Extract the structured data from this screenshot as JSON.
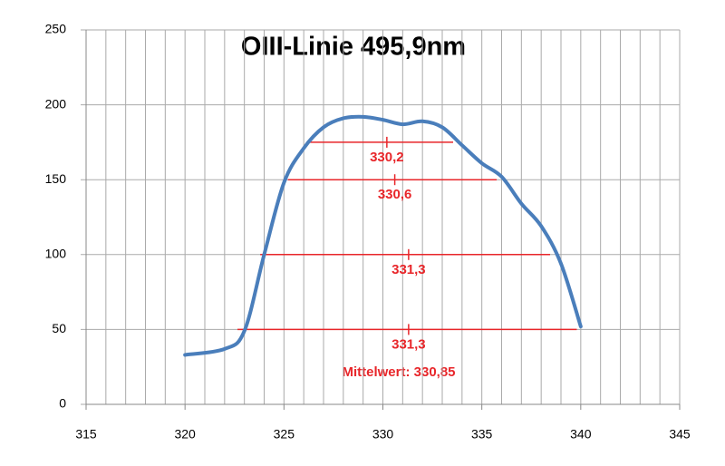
{
  "chart_data": {
    "type": "line",
    "title": "OIII-Linie 495,9nm",
    "x": [
      320,
      322,
      323,
      324,
      325,
      326,
      327,
      328,
      329,
      330,
      331,
      332,
      333,
      334,
      335,
      336,
      337,
      338,
      339,
      340
    ],
    "series": [
      {
        "color": "#4a7ebb",
        "values": [
          33,
          37,
          49,
          100,
          148,
          171,
          185,
          191,
          192,
          190,
          187,
          189,
          185,
          173,
          161,
          152,
          134,
          119,
          94,
          52
        ]
      }
    ],
    "xlim": [
      315,
      345
    ],
    "xticks": [
      315,
      320,
      325,
      330,
      335,
      340,
      345
    ],
    "xgrid_step": 1,
    "ylim": [
      0,
      250
    ],
    "yticks": [
      0,
      50,
      100,
      150,
      200,
      250
    ],
    "grid": true,
    "annotation_color": "#e8262a",
    "annotations": [
      {
        "y": 175,
        "x_start": 326.3,
        "x_end": 333.55,
        "center": 330.2,
        "label": "330,2"
      },
      {
        "y": 150,
        "x_start": 325.2,
        "x_end": 335.75,
        "center": 330.6,
        "label": "330,6"
      },
      {
        "y": 100,
        "x_start": 323.8,
        "x_end": 338.45,
        "center": 331.3,
        "label": "331,3"
      },
      {
        "y": 50,
        "x_start": 322.65,
        "x_end": 339.8,
        "center": 331.3,
        "label": "331,3"
      }
    ],
    "mean_label": "Mittelwert: 330,85"
  }
}
